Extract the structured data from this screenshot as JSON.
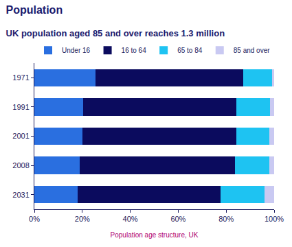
{
  "chart_data": {
    "type": "bar",
    "title": "Population",
    "subtitle": "UK population aged 85 and over reaches 1.3 million",
    "x_label": "Population age structure, UK",
    "orientation": "horizontal",
    "stacked": true,
    "grid": false,
    "legend": "top",
    "categories": [
      "1971",
      "1991",
      "2001",
      "2008",
      "2031"
    ],
    "series": [
      {
        "name": "Under 16",
        "color": "#2a6fe0",
        "values": [
          25.5,
          20.3,
          20.0,
          19.0,
          18.0
        ]
      },
      {
        "name": "16 to 64",
        "color": "#0b0b5e",
        "values": [
          61.5,
          64.0,
          64.1,
          64.7,
          59.7
        ]
      },
      {
        "name": "65 to 84",
        "color": "#1ec3f2",
        "values": [
          12.0,
          14.0,
          13.8,
          14.2,
          18.3
        ]
      },
      {
        "name": "85 and over",
        "color": "#c9c9f2",
        "values": [
          1.0,
          1.7,
          2.1,
          2.1,
          4.0
        ]
      }
    ],
    "xlim": [
      0,
      100
    ],
    "xticks": [
      {
        "value": 0,
        "label": "0%"
      },
      {
        "value": 20,
        "label": "20%"
      },
      {
        "value": 40,
        "label": "40%"
      },
      {
        "value": 60,
        "label": "60%"
      },
      {
        "value": 80,
        "label": "80%"
      },
      {
        "value": 100,
        "label": "100%"
      }
    ]
  }
}
